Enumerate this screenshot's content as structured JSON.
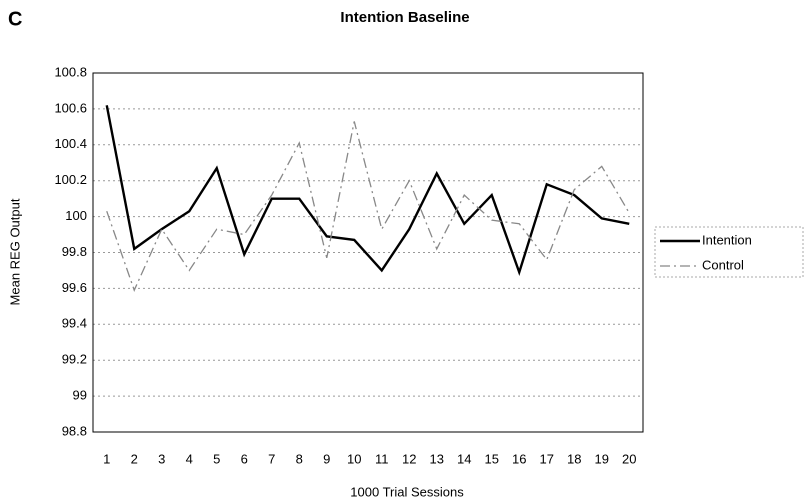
{
  "chart_data": {
    "type": "line",
    "panel": "C",
    "title": "Intention Baseline",
    "xlabel": "1000 Trial Sessions",
    "ylabel": "Mean REG Output",
    "categories": [
      1,
      2,
      3,
      4,
      5,
      6,
      7,
      8,
      9,
      10,
      11,
      12,
      13,
      14,
      15,
      16,
      17,
      18,
      19,
      20
    ],
    "series": [
      {
        "name": "Intention",
        "color": "#000000",
        "dash": false,
        "values": [
          100.62,
          99.82,
          99.93,
          100.03,
          100.27,
          99.79,
          100.1,
          100.1,
          99.89,
          99.87,
          99.7,
          99.93,
          100.24,
          99.96,
          100.12,
          99.69,
          100.18,
          100.12,
          99.99,
          99.96
        ]
      },
      {
        "name": "Control",
        "color": "#888888",
        "dash": true,
        "values": [
          100.03,
          99.59,
          99.93,
          99.7,
          99.93,
          99.9,
          100.12,
          100.41,
          99.77,
          100.53,
          99.93,
          100.2,
          99.82,
          100.12,
          99.98,
          99.96,
          99.76,
          100.15,
          100.28,
          100.02
        ]
      }
    ],
    "ylim": [
      98.8,
      100.8
    ],
    "yticks": [
      98.8,
      99,
      99.2,
      99.4,
      99.6,
      99.8,
      100,
      100.2,
      100.4,
      100.6,
      100.8
    ],
    "grid": true,
    "legend": "right"
  }
}
